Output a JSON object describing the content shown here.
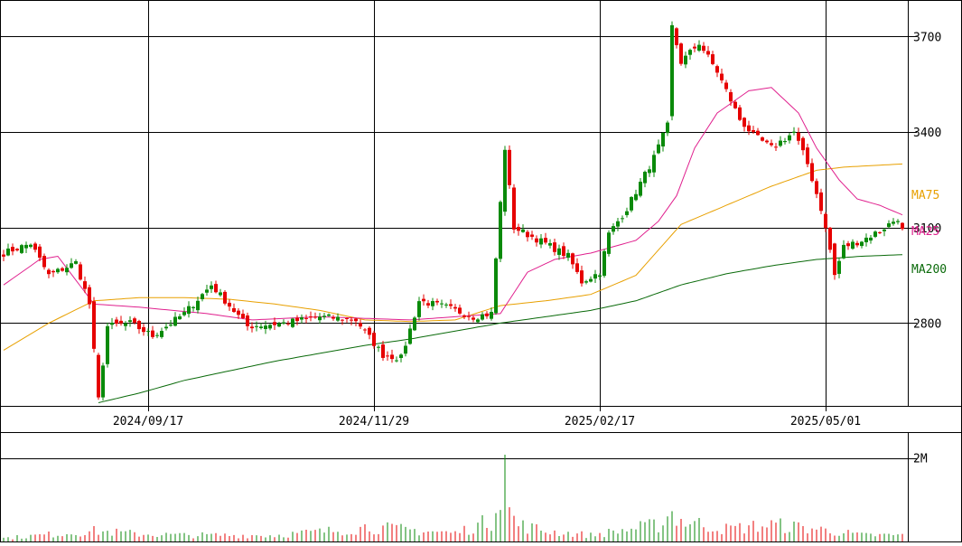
{
  "chart_data": {
    "type": "candlestick",
    "price_axis": {
      "ticks": [
        {
          "value": 2800,
          "label": "2800"
        },
        {
          "value": 3100,
          "label": "3100"
        },
        {
          "value": 3400,
          "label": "3400"
        },
        {
          "value": 3700,
          "label": "3700"
        }
      ],
      "range": [
        2540,
        3815
      ]
    },
    "date_axis": {
      "ticks": [
        {
          "label": "2024/09/17",
          "bar": 32
        },
        {
          "label": "2024/11/29",
          "bar": 82
        },
        {
          "label": "2025/02/17",
          "bar": 132
        },
        {
          "label": "2025/05/01",
          "bar": 182
        }
      ],
      "bar_count": 200
    },
    "volume_axis": {
      "ticks": [
        {
          "value": 2000000,
          "label": "2M"
        }
      ],
      "range": [
        0,
        2600000
      ]
    },
    "legend": [
      {
        "name": "MA75",
        "color": "#e8a000",
        "value": 3285
      },
      {
        "name": "MA25",
        "color": "#e0208e",
        "value": 3140
      },
      {
        "name": "MA200",
        "color": "#0a6a0a",
        "value": 3017
      }
    ],
    "colors": {
      "up": "#0a8a0a",
      "down": "#e60000",
      "grid": "#000000"
    },
    "series_anchors": {
      "close_path": [
        [
          0,
          3020
        ],
        [
          6,
          3050
        ],
        [
          10,
          2950
        ],
        [
          16,
          2990
        ],
        [
          19,
          2860
        ],
        [
          21,
          2560
        ],
        [
          23,
          2790
        ],
        [
          28,
          2800
        ],
        [
          33,
          2760
        ],
        [
          40,
          2830
        ],
        [
          46,
          2920
        ],
        [
          54,
          2790
        ],
        [
          62,
          2800
        ],
        [
          70,
          2820
        ],
        [
          78,
          2810
        ],
        [
          84,
          2700
        ],
        [
          88,
          2690
        ],
        [
          92,
          2870
        ],
        [
          98,
          2850
        ],
        [
          104,
          2820
        ],
        [
          108,
          2830
        ],
        [
          111,
          3350
        ],
        [
          113,
          3100
        ],
        [
          120,
          3050
        ],
        [
          125,
          3010
        ],
        [
          128,
          2930
        ],
        [
          132,
          2960
        ],
        [
          134,
          3080
        ],
        [
          138,
          3160
        ],
        [
          144,
          3320
        ],
        [
          147,
          3420
        ],
        [
          148,
          3730
        ],
        [
          150,
          3620
        ],
        [
          154,
          3680
        ],
        [
          158,
          3590
        ],
        [
          163,
          3440
        ],
        [
          166,
          3390
        ],
        [
          170,
          3350
        ],
        [
          175,
          3400
        ],
        [
          178,
          3300
        ],
        [
          181,
          3160
        ],
        [
          183,
          3030
        ],
        [
          184,
          2950
        ],
        [
          186,
          3040
        ],
        [
          190,
          3060
        ],
        [
          194,
          3090
        ],
        [
          198,
          3130
        ],
        [
          199,
          3090
        ]
      ],
      "ma25_path": [
        [
          0,
          2920
        ],
        [
          8,
          3000
        ],
        [
          12,
          3010
        ],
        [
          20,
          2860
        ],
        [
          30,
          2850
        ],
        [
          45,
          2830
        ],
        [
          55,
          2810
        ],
        [
          70,
          2820
        ],
        [
          90,
          2810
        ],
        [
          110,
          2830
        ],
        [
          116,
          2960
        ],
        [
          122,
          3000
        ],
        [
          130,
          3020
        ],
        [
          140,
          3060
        ],
        [
          145,
          3120
        ],
        [
          149,
          3200
        ],
        [
          153,
          3350
        ],
        [
          158,
          3460
        ],
        [
          165,
          3530
        ],
        [
          170,
          3540
        ],
        [
          176,
          3460
        ],
        [
          180,
          3350
        ],
        [
          185,
          3250
        ],
        [
          189,
          3190
        ],
        [
          194,
          3170
        ],
        [
          199,
          3140
        ]
      ],
      "ma75_path": [
        [
          0,
          2715
        ],
        [
          10,
          2800
        ],
        [
          20,
          2870
        ],
        [
          30,
          2880
        ],
        [
          40,
          2880
        ],
        [
          50,
          2875
        ],
        [
          60,
          2860
        ],
        [
          70,
          2840
        ],
        [
          80,
          2810
        ],
        [
          90,
          2805
        ],
        [
          100,
          2810
        ],
        [
          110,
          2855
        ],
        [
          120,
          2870
        ],
        [
          130,
          2890
        ],
        [
          140,
          2950
        ],
        [
          145,
          3030
        ],
        [
          150,
          3110
        ],
        [
          160,
          3170
        ],
        [
          170,
          3230
        ],
        [
          180,
          3280
        ],
        [
          186,
          3290
        ],
        [
          199,
          3300
        ]
      ],
      "ma200_path": [
        [
          21,
          2550
        ],
        [
          30,
          2580
        ],
        [
          40,
          2620
        ],
        [
          50,
          2650
        ],
        [
          60,
          2680
        ],
        [
          70,
          2705
        ],
        [
          80,
          2730
        ],
        [
          90,
          2750
        ],
        [
          100,
          2775
        ],
        [
          110,
          2800
        ],
        [
          120,
          2820
        ],
        [
          130,
          2840
        ],
        [
          140,
          2870
        ],
        [
          146,
          2900
        ],
        [
          150,
          2920
        ],
        [
          160,
          2955
        ],
        [
          170,
          2980
        ],
        [
          180,
          3000
        ],
        [
          190,
          3010
        ],
        [
          199,
          3015
        ]
      ],
      "volume_path": [
        [
          0,
          80000
        ],
        [
          20,
          250000
        ],
        [
          30,
          180000
        ],
        [
          40,
          150000
        ],
        [
          60,
          150000
        ],
        [
          78,
          300000
        ],
        [
          80,
          350000
        ],
        [
          100,
          200000
        ],
        [
          108,
          500000
        ],
        [
          110,
          1400000
        ],
        [
          111,
          2200000
        ],
        [
          112,
          700000
        ],
        [
          114,
          400000
        ],
        [
          120,
          250000
        ],
        [
          130,
          150000
        ],
        [
          145,
          400000
        ],
        [
          148,
          700000
        ],
        [
          150,
          500000
        ],
        [
          160,
          300000
        ],
        [
          170,
          400000
        ],
        [
          180,
          300000
        ],
        [
          190,
          150000
        ],
        [
          199,
          150000
        ]
      ]
    }
  }
}
